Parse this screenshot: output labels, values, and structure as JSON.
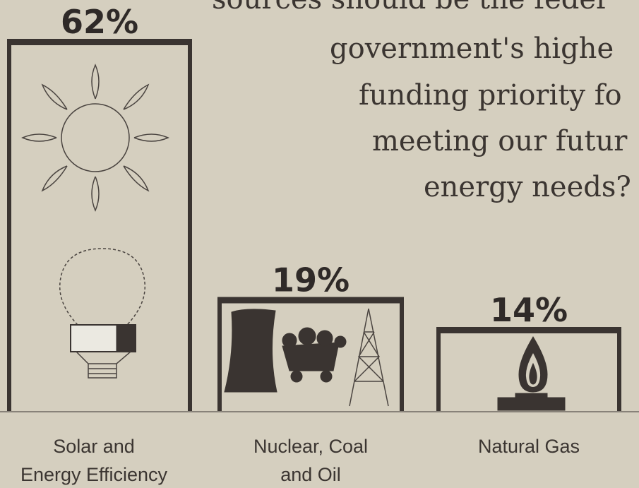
{
  "chart_data": {
    "type": "bar",
    "title_lines": [
      "sources should be the feder",
      "government's highe",
      "funding priority fo",
      "meeting our futur",
      "energy needs?"
    ],
    "categories": [
      [
        "Solar and",
        "Energy Efficiency"
      ],
      [
        "Nuclear, Coal",
        "and Oil"
      ],
      [
        "Natural Gas"
      ]
    ],
    "values": [
      62,
      19,
      14
    ],
    "value_labels": [
      "62%",
      "19%",
      "14%"
    ],
    "color": "#3a3431"
  }
}
